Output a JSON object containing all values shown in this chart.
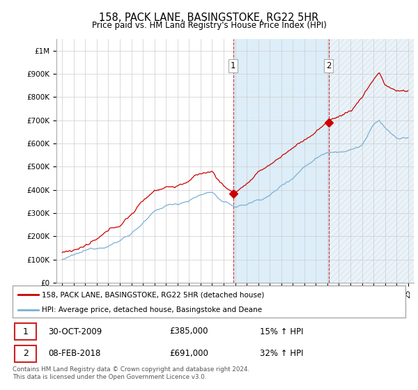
{
  "title": "158, PACK LANE, BASINGSTOKE, RG22 5HR",
  "subtitle": "Price paid vs. HM Land Registry's House Price Index (HPI)",
  "ylim": [
    0,
    1050000
  ],
  "yticks": [
    0,
    100000,
    200000,
    300000,
    400000,
    500000,
    600000,
    700000,
    800000,
    900000,
    1000000
  ],
  "ytick_labels": [
    "£0",
    "£100K",
    "£200K",
    "£300K",
    "£400K",
    "£500K",
    "£600K",
    "£700K",
    "£800K",
    "£900K",
    "£1M"
  ],
  "xlim_start": 1994.5,
  "xlim_end": 2025.5,
  "hpi_color": "#7bafd4",
  "price_color": "#cc0000",
  "sale1_x": 2009.83,
  "sale1_y": 385000,
  "sale1_label": "1",
  "sale2_x": 2018.1,
  "sale2_y": 691000,
  "sale2_label": "2",
  "annotation1_date": "30-OCT-2009",
  "annotation1_price": "£385,000",
  "annotation1_hpi": "15% ↑ HPI",
  "annotation2_date": "08-FEB-2018",
  "annotation2_price": "£691,000",
  "annotation2_hpi": "32% ↑ HPI",
  "legend_line1": "158, PACK LANE, BASINGSTOKE, RG22 5HR (detached house)",
  "legend_line2": "HPI: Average price, detached house, Basingstoke and Deane",
  "footer": "Contains HM Land Registry data © Crown copyright and database right 2024.\nThis data is licensed under the Open Government Licence v3.0.",
  "background_color": "#ffffff",
  "plot_bg_color": "#ffffff",
  "grid_color": "#cccccc",
  "shaded_color": "#ddeef8"
}
